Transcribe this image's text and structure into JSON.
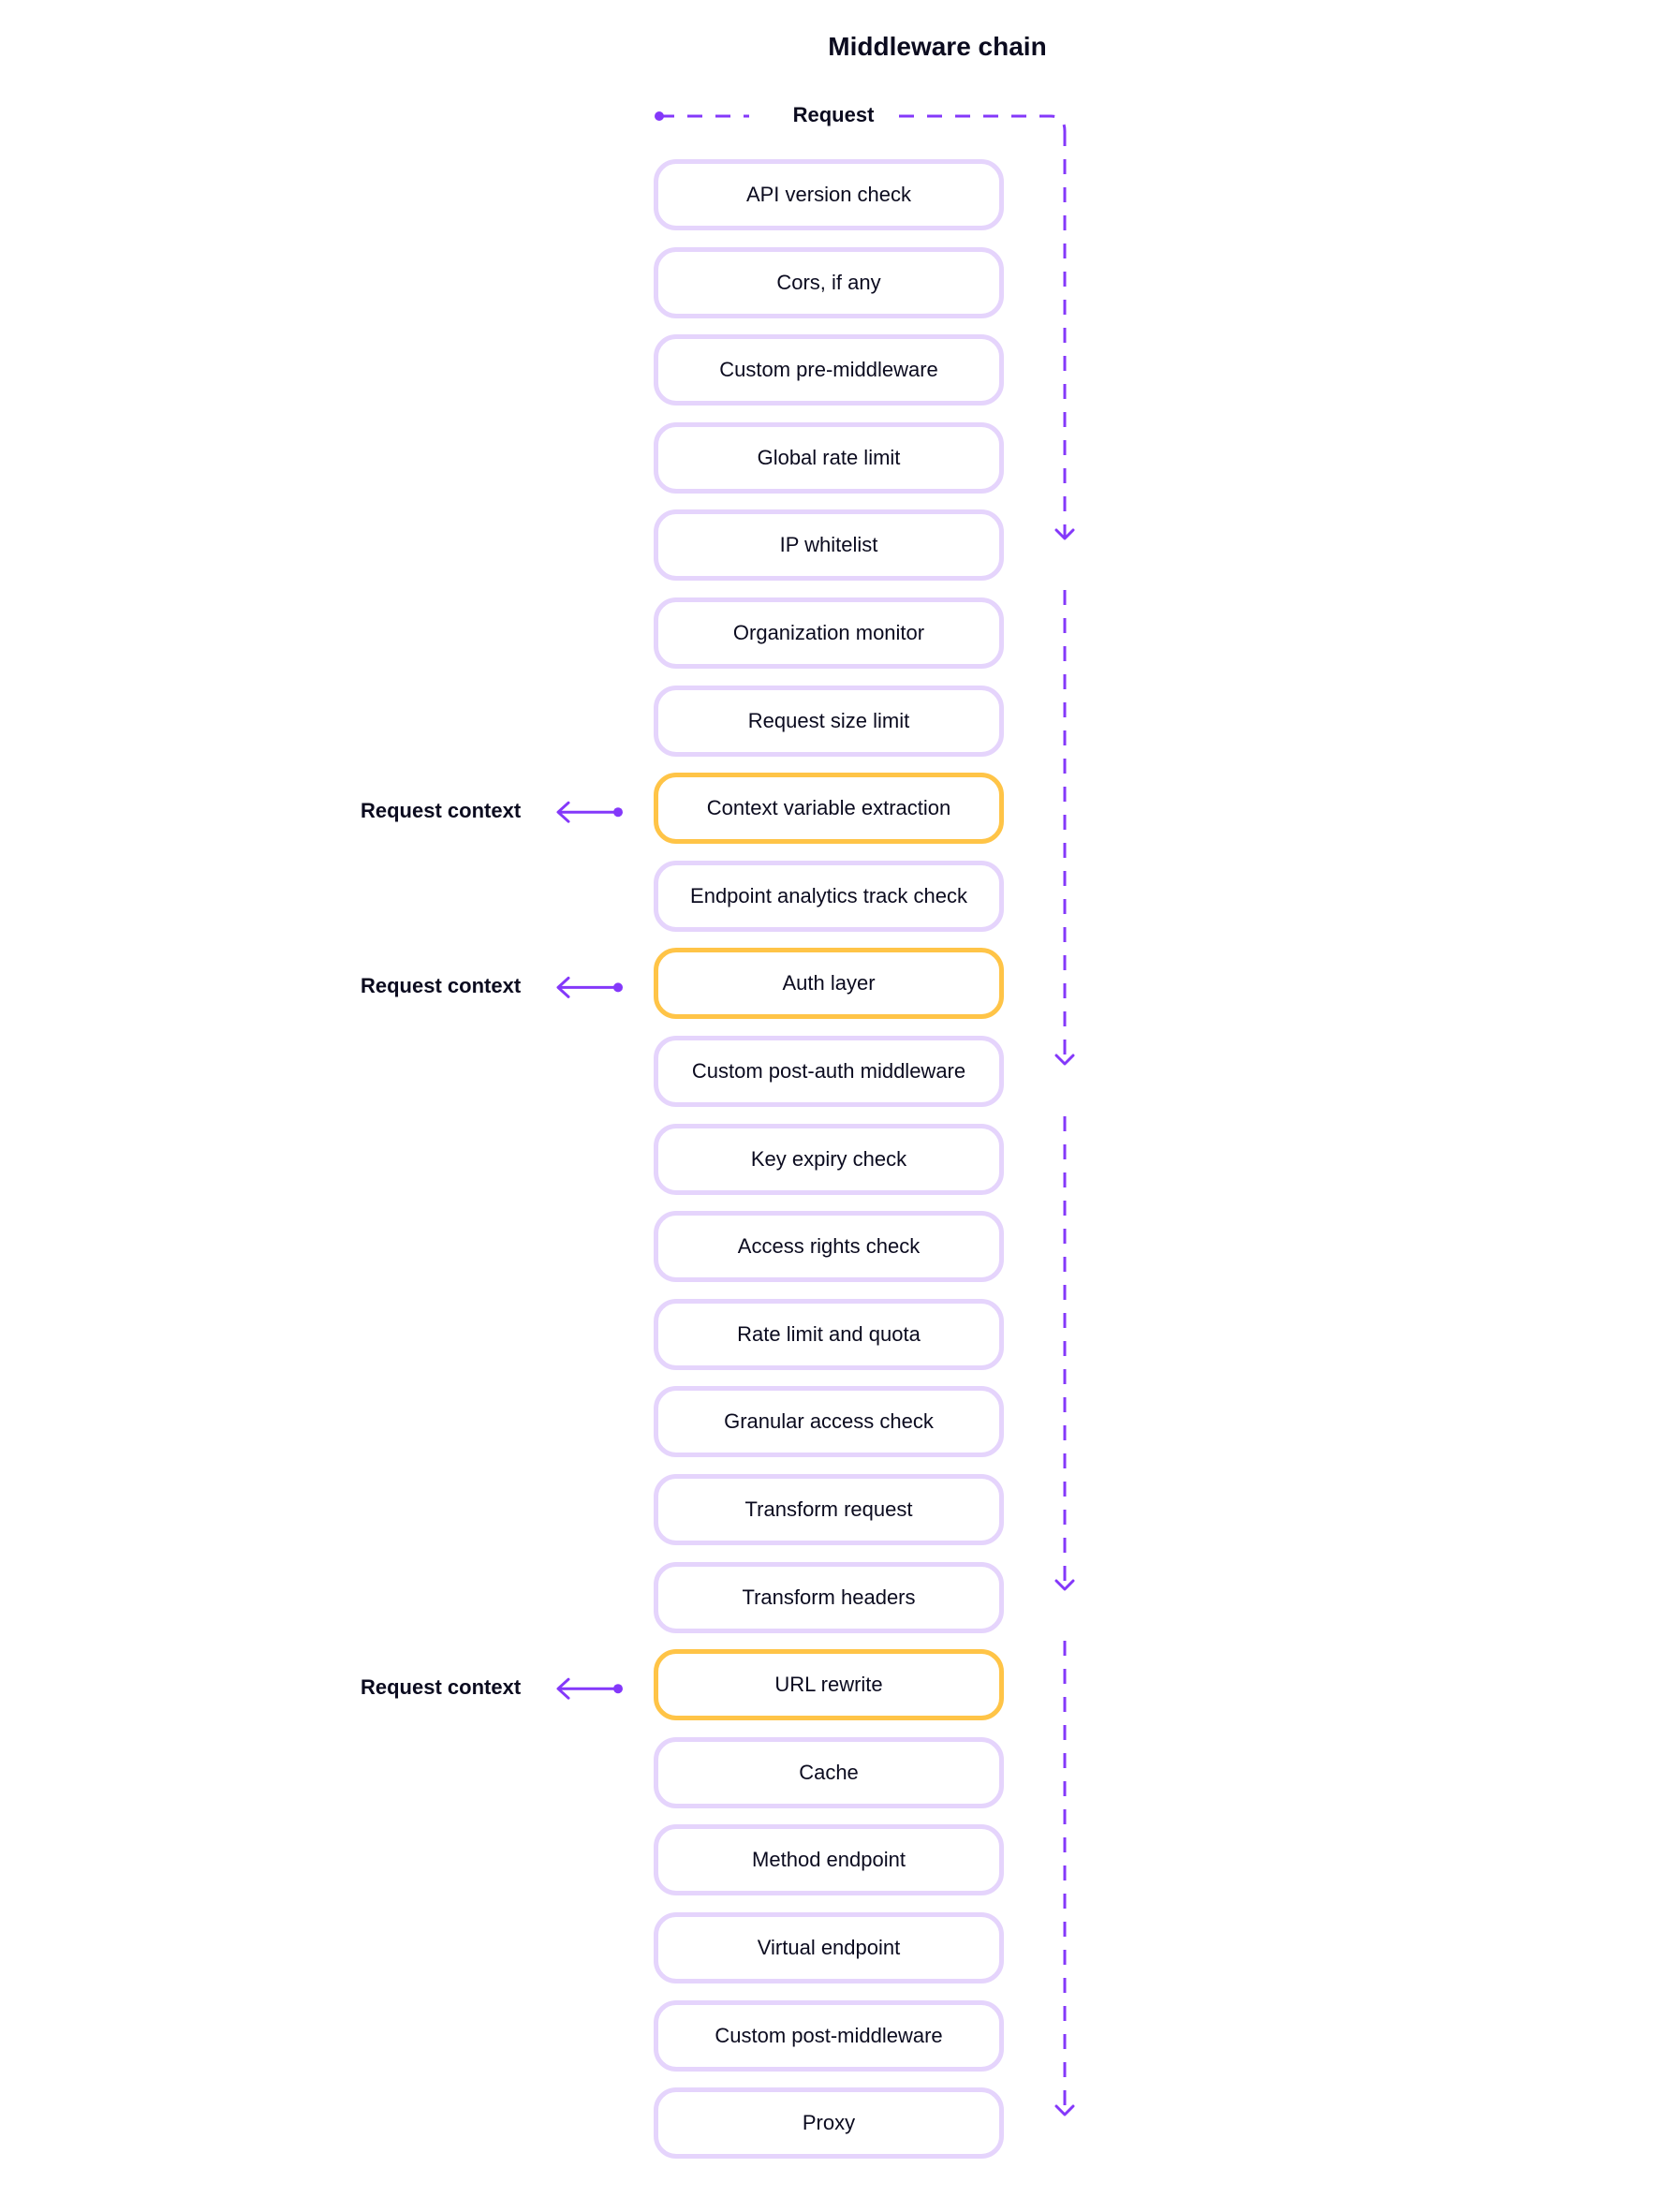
{
  "title": "Middleware chain",
  "request_label": "Request",
  "context_label": "Request context",
  "colors": {
    "accent": "#8438FA",
    "box_border": "#E5D4FC",
    "highlight_border": "#FFC447"
  },
  "steps": [
    {
      "label": "API version check",
      "highlight": false
    },
    {
      "label": "Cors, if any",
      "highlight": false
    },
    {
      "label": "Custom pre-middleware",
      "highlight": false
    },
    {
      "label": "Global rate limit",
      "highlight": false
    },
    {
      "label": "IP whitelist",
      "highlight": false
    },
    {
      "label": "Organization monitor",
      "highlight": false
    },
    {
      "label": "Request size limit",
      "highlight": false
    },
    {
      "label": "Context variable extraction",
      "highlight": true
    },
    {
      "label": "Endpoint analytics track check",
      "highlight": false
    },
    {
      "label": "Auth layer",
      "highlight": true
    },
    {
      "label": "Custom post-auth middleware",
      "highlight": false
    },
    {
      "label": "Key expiry check",
      "highlight": false
    },
    {
      "label": "Access rights check",
      "highlight": false
    },
    {
      "label": "Rate limit and quota",
      "highlight": false
    },
    {
      "label": "Granular access check",
      "highlight": false
    },
    {
      "label": "Transform request",
      "highlight": false
    },
    {
      "label": "Transform headers",
      "highlight": false
    },
    {
      "label": "URL rewrite",
      "highlight": true
    },
    {
      "label": "Cache",
      "highlight": false
    },
    {
      "label": "Method endpoint",
      "highlight": false
    },
    {
      "label": "Virtual endpoint",
      "highlight": false
    },
    {
      "label": "Custom post-middleware",
      "highlight": false
    },
    {
      "label": "Proxy",
      "highlight": false
    }
  ]
}
